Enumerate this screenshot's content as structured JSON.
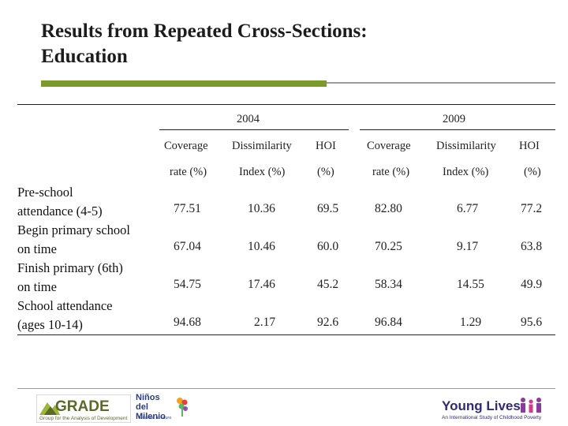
{
  "slide": {
    "title_line1": "Results from Repeated Cross-Sections:",
    "title_line2": "Education"
  },
  "table": {
    "groups": [
      "2004",
      "2009"
    ],
    "col_header_line1": [
      "Coverage",
      "Dissimilarity",
      "HOI",
      "Coverage",
      "Dissimilarity",
      "HOI"
    ],
    "col_header_line2": [
      "rate (%)",
      "Index (%)",
      "(%)",
      "rate (%)",
      "Index (%)",
      "(%)"
    ],
    "rows": [
      {
        "label_line1": "Pre-school",
        "label_line2": "attendance (4-5)",
        "values": [
          "77.51",
          "10.36",
          "69.5",
          "82.80",
          "6.77",
          "77.2"
        ]
      },
      {
        "label_line1": "Begin primary school",
        "label_line2": "on time",
        "values": [
          "67.04",
          "10.46",
          "60.0",
          "70.25",
          "9.17",
          "63.8"
        ]
      },
      {
        "label_line1": "Finish primary (6th)",
        "label_line2": "on time",
        "values": [
          "54.75",
          "17.46",
          "45.2",
          "58.34",
          "14.55",
          "49.9"
        ]
      },
      {
        "label_line1": "School attendance",
        "label_line2": "(ages 10-14)",
        "values": [
          "94.68",
          "2.17",
          "92.6",
          "96.84",
          "1.29",
          "95.6"
        ]
      }
    ]
  },
  "footer": {
    "grade_name": "GRADE",
    "grade_tagline": "Group for the Analysis of Development",
    "ninos_name": "Niños del Milenio",
    "ninos_tagline": "Mirando al futuro",
    "young_lives_name": "Young Lives",
    "young_lives_tagline": "An International Study of Childhood Poverty"
  },
  "colors": {
    "accent_green": "#7a9a2a",
    "young_lives_purple": "#2f2a75",
    "ninos_blue": "#2a3d86"
  }
}
